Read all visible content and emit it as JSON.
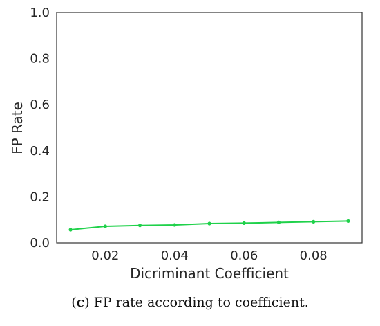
{
  "chart_data": {
    "type": "line",
    "xlabel": "Dicriminant Coefficient",
    "ylabel": "FP Rate",
    "xlim": [
      0.006,
      0.094
    ],
    "ylim": [
      0.0,
      1.0
    ],
    "x_ticks": [
      "0.02",
      "0.04",
      "0.06",
      "0.08"
    ],
    "x_tick_values": [
      0.02,
      0.04,
      0.06,
      0.08
    ],
    "y_ticks": [
      "0.0",
      "0.2",
      "0.4",
      "0.6",
      "0.8",
      "1.0"
    ],
    "y_tick_values": [
      0.0,
      0.2,
      0.4,
      0.6,
      0.8,
      1.0
    ],
    "grid": false,
    "series": [
      {
        "color": "#1fd14a",
        "x": [
          0.01,
          0.02,
          0.03,
          0.04,
          0.05,
          0.06,
          0.07,
          0.08,
          0.09
        ],
        "y": [
          0.057,
          0.072,
          0.076,
          0.078,
          0.084,
          0.086,
          0.089,
          0.092,
          0.095
        ]
      }
    ]
  },
  "caption": {
    "label": "c",
    "text": " FP rate according to coefficient."
  }
}
